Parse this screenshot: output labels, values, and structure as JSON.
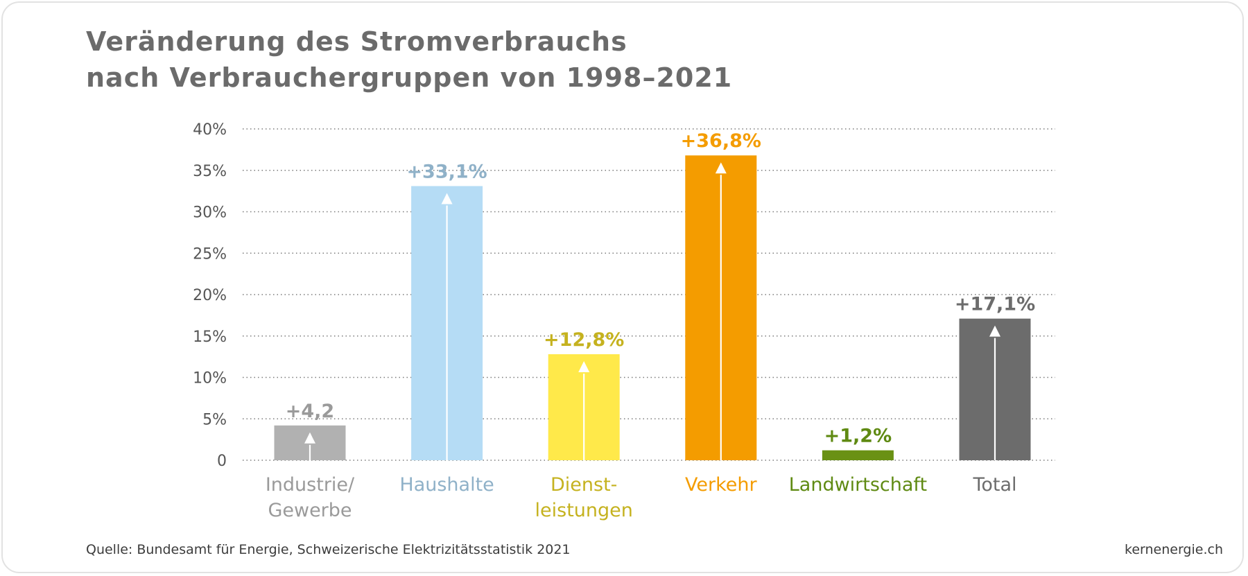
{
  "title": {
    "line1": "Veränderung des Stromverbrauchs",
    "line2": "nach Verbrauchergruppen von 1998–2021"
  },
  "chart_data": {
    "type": "bar",
    "categories": [
      [
        "Industrie/",
        "Gewerbe"
      ],
      [
        "Haushalte"
      ],
      [
        "Dienst-",
        "leistungen"
      ],
      [
        "Verkehr"
      ],
      [
        "Landwirtschaft"
      ],
      [
        "Total"
      ]
    ],
    "values": [
      4.2,
      33.1,
      12.8,
      36.8,
      1.2,
      17.1
    ],
    "value_labels": [
      "+4,2",
      "+33,1%",
      "+12,8%",
      "+36,8%",
      "+1,2%",
      "+17,1%"
    ],
    "bar_colors": [
      "#b1b1b1",
      "#b5dcf5",
      "#ffe94a",
      "#f49c00",
      "#6a9114",
      "#6c6c6c"
    ],
    "label_colors": [
      "#9a9a9a",
      "#8fb1c8",
      "#c5b21f",
      "#f49c00",
      "#5f8a12",
      "#6c6c6c"
    ],
    "arrows": [
      true,
      true,
      true,
      true,
      false,
      true
    ],
    "yticks": [
      "0",
      "5%",
      "10%",
      "15%",
      "20%",
      "25%",
      "30%",
      "35%",
      "40%"
    ],
    "ytick_values": [
      0,
      5,
      10,
      15,
      20,
      25,
      30,
      35,
      40
    ],
    "ylim": [
      0,
      40
    ],
    "grid": true,
    "legend": false,
    "xlabel": "",
    "ylabel": ""
  },
  "footer": {
    "source": "Quelle: Bundesamt für Energie, Schweizerische Elektrizitätsstatistik 2021",
    "brand": "kernenergie.ch"
  }
}
